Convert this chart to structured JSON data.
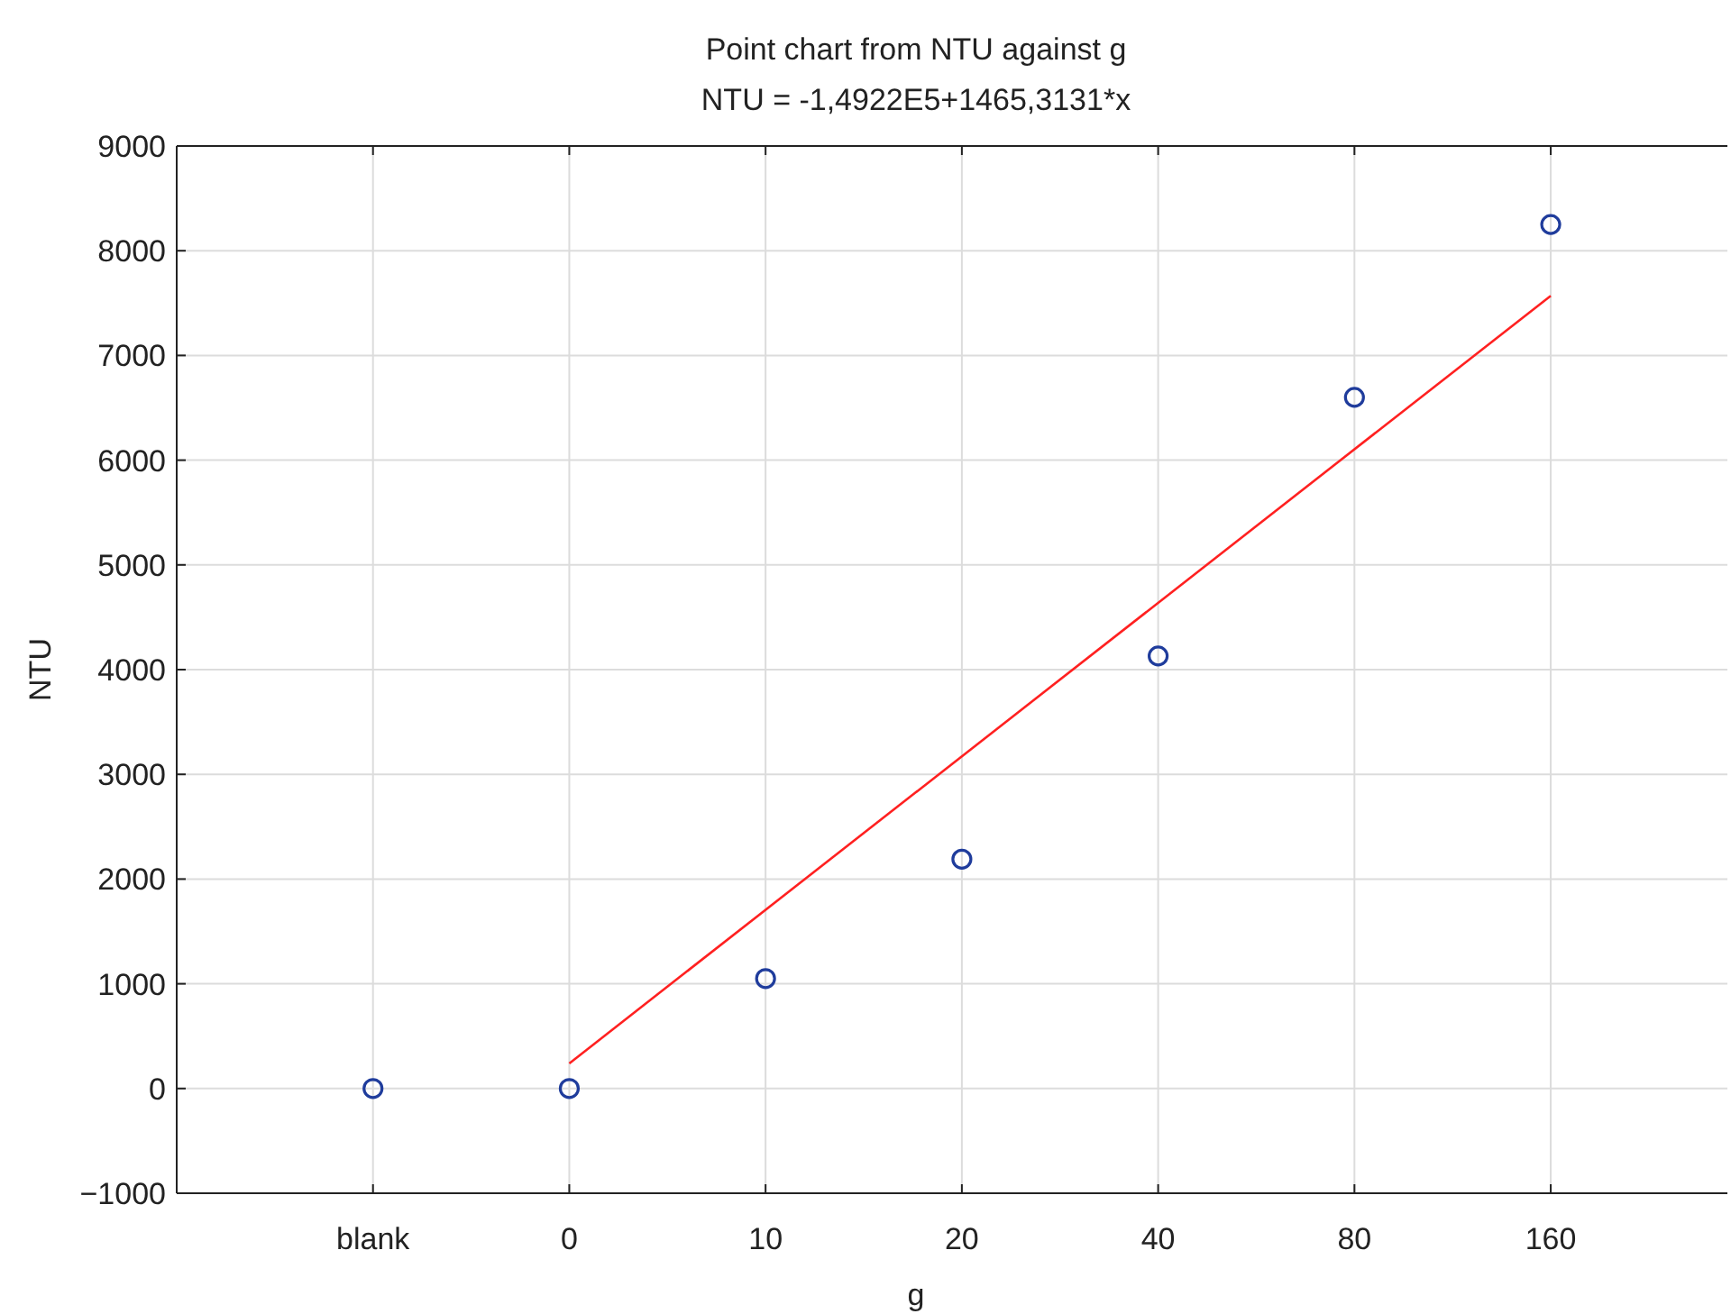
{
  "chart_data": {
    "type": "scatter",
    "title": "Point chart from NTU against g",
    "subtitle": "NTU = -1,4922E5+1465,3131*x",
    "xlabel": "g",
    "ylabel": "NTU",
    "categories": [
      "blank",
      "0",
      "10",
      "20",
      "40",
      "80",
      "160"
    ],
    "series": [
      {
        "color": "#1f3c9c",
        "values": [
          0,
          0,
          1050,
          2190,
          4130,
          6600,
          8250
        ]
      },
      {
        "type": "line",
        "color": "#ff2020",
        "marker": "none",
        "x": [
          "0",
          "160"
        ],
        "values": [
          240,
          7570
        ]
      }
    ],
    "ylim": [
      -1000,
      9000
    ],
    "yticks": [
      {
        "value": -1000,
        "label": "−1000"
      },
      0,
      1000,
      2000,
      3000,
      4000,
      5000,
      6000,
      7000,
      8000,
      9000
    ],
    "grid": true,
    "marker": "circle"
  }
}
